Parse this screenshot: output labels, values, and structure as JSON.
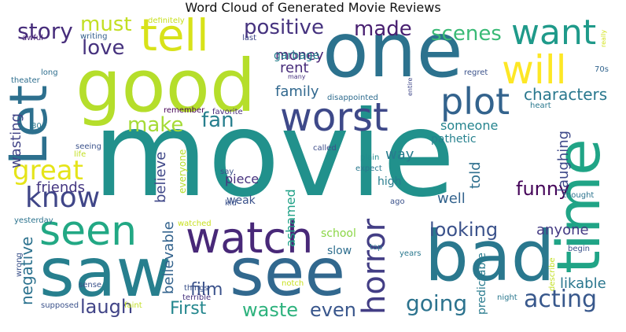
{
  "chart_data": {
    "type": "wordcloud",
    "title": "Word Cloud of Generated Movie Reviews",
    "words": [
      {
        "text": "movie",
        "weight": 1.0,
        "color": "#21918c",
        "orientation": "horizontal"
      },
      {
        "text": "one",
        "weight": 0.62,
        "color": "#2c728e",
        "orientation": "horizontal"
      },
      {
        "text": "good",
        "weight": 0.58,
        "color": "#b5de2b",
        "orientation": "horizontal"
      },
      {
        "text": "bad",
        "weight": 0.55,
        "color": "#2a788e",
        "orientation": "horizontal"
      },
      {
        "text": "see",
        "weight": 0.53,
        "color": "#31688e",
        "orientation": "horizontal"
      },
      {
        "text": "saw",
        "weight": 0.52,
        "color": "#277f8e",
        "orientation": "horizontal"
      },
      {
        "text": "time",
        "weight": 0.48,
        "color": "#20a486",
        "orientation": "vertical"
      },
      {
        "text": "Let",
        "weight": 0.44,
        "color": "#2d708e",
        "orientation": "vertical"
      },
      {
        "text": "tell",
        "weight": 0.36,
        "color": "#d8e219",
        "orientation": "horizontal"
      },
      {
        "text": "watch",
        "weight": 0.33,
        "color": "#482878",
        "orientation": "horizontal"
      },
      {
        "text": "worst",
        "weight": 0.32,
        "color": "#3e4989",
        "orientation": "horizontal"
      },
      {
        "text": "will",
        "weight": 0.31,
        "color": "#fde725",
        "orientation": "horizontal"
      },
      {
        "text": "seen",
        "weight": 0.3,
        "color": "#22a884",
        "orientation": "horizontal"
      },
      {
        "text": "plot",
        "weight": 0.29,
        "color": "#33638d",
        "orientation": "horizontal"
      },
      {
        "text": "want",
        "weight": 0.27,
        "color": "#1f9a8a",
        "orientation": "horizontal"
      },
      {
        "text": "horror",
        "weight": 0.24,
        "color": "#433e85",
        "orientation": "vertical"
      },
      {
        "text": "know",
        "weight": 0.22,
        "color": "#404688",
        "orientation": "horizontal"
      },
      {
        "text": "great",
        "weight": 0.2,
        "color": "#e5e419",
        "orientation": "horizontal"
      },
      {
        "text": "acting",
        "weight": 0.18,
        "color": "#38588c",
        "orientation": "horizontal"
      },
      {
        "text": "going",
        "weight": 0.17,
        "color": "#2c738e",
        "orientation": "horizontal"
      },
      {
        "text": "story",
        "weight": 0.16,
        "color": "#472d7b",
        "orientation": "horizontal"
      },
      {
        "text": "positive",
        "weight": 0.15,
        "color": "#46337f",
        "orientation": "horizontal"
      },
      {
        "text": "scenes",
        "weight": 0.15,
        "color": "#3aba76",
        "orientation": "horizontal"
      },
      {
        "text": "made",
        "weight": 0.15,
        "color": "#481f70",
        "orientation": "horizontal"
      },
      {
        "text": "must",
        "weight": 0.15,
        "color": "#c2df23",
        "orientation": "horizontal"
      },
      {
        "text": "love",
        "weight": 0.14,
        "color": "#46327e",
        "orientation": "horizontal"
      },
      {
        "text": "fan",
        "weight": 0.14,
        "color": "#277f8e",
        "orientation": "horizontal"
      },
      {
        "text": "make",
        "weight": 0.14,
        "color": "#a5db36",
        "orientation": "horizontal"
      },
      {
        "text": "funny",
        "weight": 0.14,
        "color": "#450559",
        "orientation": "horizontal"
      },
      {
        "text": "laugh",
        "weight": 0.14,
        "color": "#414487",
        "orientation": "horizontal"
      },
      {
        "text": "looking",
        "weight": 0.14,
        "color": "#3b528b",
        "orientation": "horizontal"
      },
      {
        "text": "waste",
        "weight": 0.14,
        "color": "#2db27d",
        "orientation": "horizontal"
      },
      {
        "text": "even",
        "weight": 0.14,
        "color": "#39568c",
        "orientation": "horizontal"
      },
      {
        "text": "First",
        "weight": 0.13,
        "color": "#24878e",
        "orientation": "horizontal"
      },
      {
        "text": "characters",
        "weight": 0.13,
        "color": "#2a788e",
        "orientation": "horizontal"
      },
      {
        "text": "film",
        "weight": 0.13,
        "color": "#3b528b",
        "orientation": "horizontal"
      },
      {
        "text": "negative",
        "weight": 0.12,
        "color": "#2c728e",
        "orientation": "vertical"
      },
      {
        "text": "wasting",
        "weight": 0.11,
        "color": "#414487",
        "orientation": "vertical"
      },
      {
        "text": "family",
        "weight": 0.11,
        "color": "#31688e",
        "orientation": "horizontal"
      },
      {
        "text": "money",
        "weight": 0.11,
        "color": "#482475",
        "orientation": "horizontal"
      },
      {
        "text": "rent",
        "weight": 0.11,
        "color": "#472c7a",
        "orientation": "horizontal"
      },
      {
        "text": "way",
        "weight": 0.11,
        "color": "#287c8e",
        "orientation": "horizontal"
      },
      {
        "text": "well",
        "weight": 0.11,
        "color": "#33638d",
        "orientation": "horizontal"
      },
      {
        "text": "likable",
        "weight": 0.11,
        "color": "#2a768e",
        "orientation": "horizontal"
      },
      {
        "text": "anyone",
        "weight": 0.1,
        "color": "#443a83",
        "orientation": "horizontal"
      },
      {
        "text": "someone",
        "weight": 0.1,
        "color": "#25848e",
        "orientation": "horizontal"
      },
      {
        "text": "friends",
        "weight": 0.1,
        "color": "#453781",
        "orientation": "horizontal"
      },
      {
        "text": "laughing",
        "weight": 0.1,
        "color": "#3e4989",
        "orientation": "vertical"
      },
      {
        "text": "told",
        "weight": 0.1,
        "color": "#2e6f8e",
        "orientation": "vertical"
      },
      {
        "text": "believe",
        "weight": 0.09,
        "color": "#3f4788",
        "orientation": "vertical"
      },
      {
        "text": "believable",
        "weight": 0.09,
        "color": "#33638d",
        "orientation": "vertical"
      },
      {
        "text": "ashamed",
        "weight": 0.09,
        "color": "#1fa187",
        "orientation": "vertical"
      },
      {
        "text": "piece",
        "weight": 0.09,
        "color": "#46317e",
        "orientation": "horizontal"
      },
      {
        "text": "pathetic",
        "weight": 0.09,
        "color": "#26818e",
        "orientation": "horizontal"
      },
      {
        "text": "garbage",
        "weight": 0.09,
        "color": "#27808e",
        "orientation": "horizontal"
      },
      {
        "text": "weak",
        "weight": 0.09,
        "color": "#3b528b",
        "orientation": "horizontal"
      },
      {
        "text": "high",
        "weight": 0.09,
        "color": "#287d8e",
        "orientation": "horizontal"
      },
      {
        "text": "school",
        "weight": 0.08,
        "color": "#8bd646",
        "orientation": "horizontal"
      },
      {
        "text": "slow",
        "weight": 0.08,
        "color": "#2e6e8e",
        "orientation": "horizontal"
      },
      {
        "text": "predictable",
        "weight": 0.08,
        "color": "#297b8e",
        "orientation": "vertical"
      },
      {
        "text": "writing",
        "weight": 0.06,
        "color": "#34608d",
        "orientation": "horizontal"
      },
      {
        "text": "definitely",
        "weight": 0.05,
        "color": "#c8e020",
        "orientation": "horizontal"
      },
      {
        "text": "awful",
        "weight": 0.05,
        "color": "#482475",
        "orientation": "horizontal"
      },
      {
        "text": "last",
        "weight": 0.05,
        "color": "#3f4788",
        "orientation": "horizontal"
      },
      {
        "text": "long",
        "weight": 0.05,
        "color": "#2e6e8e",
        "orientation": "horizontal"
      },
      {
        "text": "theater",
        "weight": 0.05,
        "color": "#2e6e8e",
        "orientation": "horizontal"
      },
      {
        "text": "many",
        "weight": 0.05,
        "color": "#46327e",
        "orientation": "horizontal"
      },
      {
        "text": "entire",
        "weight": 0.05,
        "color": "#3f4788",
        "orientation": "vertical"
      },
      {
        "text": "regret",
        "weight": 0.05,
        "color": "#3b528b",
        "orientation": "horizontal"
      },
      {
        "text": "70s",
        "weight": 0.05,
        "color": "#32658e",
        "orientation": "horizontal"
      },
      {
        "text": "really",
        "weight": 0.05,
        "color": "#d2e21b",
        "orientation": "vertical"
      },
      {
        "text": "heart",
        "weight": 0.05,
        "color": "#2a788e",
        "orientation": "horizontal"
      },
      {
        "text": "disappointed",
        "weight": 0.06,
        "color": "#2f6c8e",
        "orientation": "horizontal"
      },
      {
        "text": "remember",
        "weight": 0.05,
        "color": "#440154",
        "orientation": "horizontal"
      },
      {
        "text": "favorite",
        "weight": 0.05,
        "color": "#472a7a",
        "orientation": "horizontal"
      },
      {
        "text": "80s",
        "weight": 0.05,
        "color": "#2a788e",
        "orientation": "horizontal"
      },
      {
        "text": "seeing",
        "weight": 0.05,
        "color": "#3b528b",
        "orientation": "horizontal"
      },
      {
        "text": "life",
        "weight": 0.05,
        "color": "#c2df23",
        "orientation": "horizontal"
      },
      {
        "text": "everyone",
        "weight": 0.05,
        "color": "#b5de2b",
        "orientation": "vertical"
      },
      {
        "text": "called",
        "weight": 0.05,
        "color": "#3d4d8a",
        "orientation": "horizontal"
      },
      {
        "text": "plain",
        "weight": 0.05,
        "color": "#228b8d",
        "orientation": "horizontal"
      },
      {
        "text": "say",
        "weight": 0.05,
        "color": "#3b528b",
        "orientation": "horizontal"
      },
      {
        "text": "expect",
        "weight": 0.05,
        "color": "#2a788e",
        "orientation": "horizontal"
      },
      {
        "text": "kid",
        "weight": 0.05,
        "color": "#3b528b",
        "orientation": "horizontal"
      },
      {
        "text": "thought",
        "weight": 0.05,
        "color": "#2c738e",
        "orientation": "horizontal"
      },
      {
        "text": "ago",
        "weight": 0.05,
        "color": "#3b528b",
        "orientation": "horizontal"
      },
      {
        "text": "yesterday",
        "weight": 0.05,
        "color": "#2c738e",
        "orientation": "horizontal"
      },
      {
        "text": "watched",
        "weight": 0.05,
        "color": "#c8e020",
        "orientation": "horizontal"
      },
      {
        "text": "years",
        "weight": 0.05,
        "color": "#2a788e",
        "orientation": "horizontal"
      },
      {
        "text": "wrong",
        "weight": 0.05,
        "color": "#3b528b",
        "orientation": "vertical"
      },
      {
        "text": "things",
        "weight": 0.05,
        "color": "#3b528b",
        "orientation": "horizontal"
      },
      {
        "text": "terrible",
        "weight": 0.05,
        "color": "#46327e",
        "orientation": "horizontal"
      },
      {
        "text": "sense",
        "weight": 0.05,
        "color": "#3b528b",
        "orientation": "horizontal"
      },
      {
        "text": "top",
        "weight": 0.05,
        "color": "#2c738e",
        "orientation": "horizontal"
      },
      {
        "text": "describe",
        "weight": 0.05,
        "color": "#c2df23",
        "orientation": "vertical"
      },
      {
        "text": "begin",
        "weight": 0.05,
        "color": "#3b528b",
        "orientation": "horizontal"
      },
      {
        "text": "supposed",
        "weight": 0.05,
        "color": "#3b528b",
        "orientation": "horizontal"
      },
      {
        "text": "faint",
        "weight": 0.05,
        "color": "#c2df23",
        "orientation": "horizontal"
      },
      {
        "text": "notch",
        "weight": 0.05,
        "color": "#c8e020",
        "orientation": "horizontal"
      },
      {
        "text": "night",
        "weight": 0.05,
        "color": "#2a788e",
        "orientation": "horizontal"
      }
    ]
  }
}
